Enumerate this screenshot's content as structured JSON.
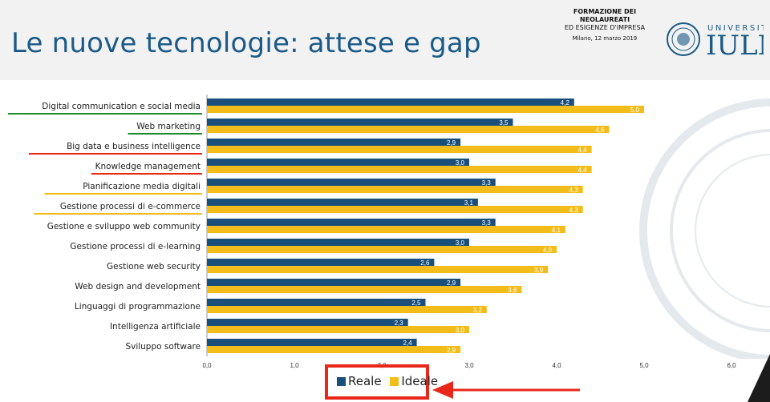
{
  "header": {
    "title": "Le nuove tecnologie: attese e gap",
    "event_line1": "FORMAZIONE DEI",
    "event_line2": "NEOLAUREATI",
    "event_line3": "ED ESIGENZE D'IMPRESA",
    "event_date": "Milano, 12 marzo 2019",
    "logo_top": "UNIVERSITÀ",
    "logo_main": "IULM"
  },
  "colors": {
    "reale": "#1a4f7c",
    "ideale": "#f2bd1a",
    "title": "#1a5a88",
    "highlight": "#e8271a"
  },
  "chart_data": {
    "type": "bar",
    "orientation": "horizontal",
    "categories": [
      "Digital communication e social media",
      "Web marketing",
      "Big data e business intelligence",
      "Knowledge management",
      "Pianificazione media digitali",
      "Gestione processi di e-commerce",
      "Gestione e sviluppo web community",
      "Gestione processi di e-learning",
      "Gestione web security",
      "Web design and development",
      "Linguaggi di programmazione",
      "Intelligenza artificiale",
      "Sviluppo software"
    ],
    "series": [
      {
        "name": "Reale",
        "values": [
          4.2,
          3.5,
          2.9,
          3.0,
          3.3,
          3.1,
          3.3,
          3.0,
          2.6,
          2.9,
          2.5,
          2.3,
          2.4
        ],
        "labels": [
          "4,2",
          "3,5",
          "2,9",
          "3,0",
          "3,3",
          "3,1",
          "3,3",
          "3,0",
          "2,6",
          "2,9",
          "2,5",
          "2,3",
          "2,4"
        ]
      },
      {
        "name": "Ideale",
        "values": [
          5.0,
          4.6,
          4.4,
          4.4,
          4.3,
          4.3,
          4.1,
          4.0,
          3.9,
          3.6,
          3.2,
          3.0,
          2.9
        ],
        "labels": [
          "5,0",
          "4,6",
          "4,4",
          "4,4",
          "4,3",
          "4,3",
          "4,1",
          "4,0",
          "3,9",
          "3,6",
          "3,2",
          "3,0",
          "2,9"
        ]
      }
    ],
    "category_underlines": [
      "green",
      "green",
      "red",
      "red",
      "yellow",
      "yellow",
      null,
      null,
      null,
      null,
      null,
      null,
      null
    ],
    "xlim": [
      0,
      6
    ],
    "xticks": [
      "0,0",
      "1,0",
      "2,0",
      "3,0",
      "4,0",
      "5,0",
      "6,0"
    ],
    "legend": "bottom-center"
  }
}
